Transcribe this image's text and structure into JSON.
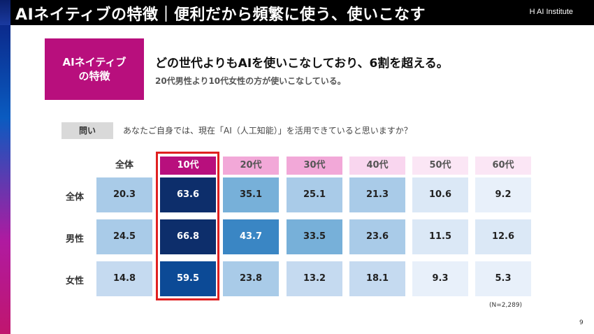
{
  "header": {
    "title": "AIネイティブの特徴｜便利だから頻繁に使う、使いこなす",
    "logo": "H AI Institute"
  },
  "badge": {
    "line1": "AIネイティブ",
    "line2": "の特徴"
  },
  "headline": "どの世代よりもAIを使いこなしており、6割を超える。",
  "subline": "20代男性より10代女性の方が使いこなしている。",
  "question": {
    "label": "問い",
    "text": "あなたご自身では、現在「AI（人工知能）」を活用できていると思いますか？"
  },
  "chart_data": {
    "type": "table",
    "columns": [
      "全体",
      "10代",
      "20代",
      "30代",
      "40代",
      "50代",
      "60代"
    ],
    "rows": [
      {
        "label": "全体",
        "values": [
          20.3,
          63.6,
          35.1,
          25.1,
          21.3,
          10.6,
          9.2
        ]
      },
      {
        "label": "男性",
        "values": [
          24.5,
          66.8,
          43.7,
          33.5,
          23.6,
          11.5,
          12.6
        ]
      },
      {
        "label": "女性",
        "values": [
          14.8,
          59.5,
          23.8,
          13.2,
          18.1,
          9.3,
          5.3
        ]
      }
    ],
    "highlighted_column": "10代",
    "header_colors": [
      "#ffffff",
      "#b80f7d",
      "#f2a8d8",
      "#f2a8d8",
      "#f9d6ef",
      "#fbe6f5",
      "#fbe6f5"
    ]
  },
  "note": "(N=2,289)",
  "page_number": "9"
}
